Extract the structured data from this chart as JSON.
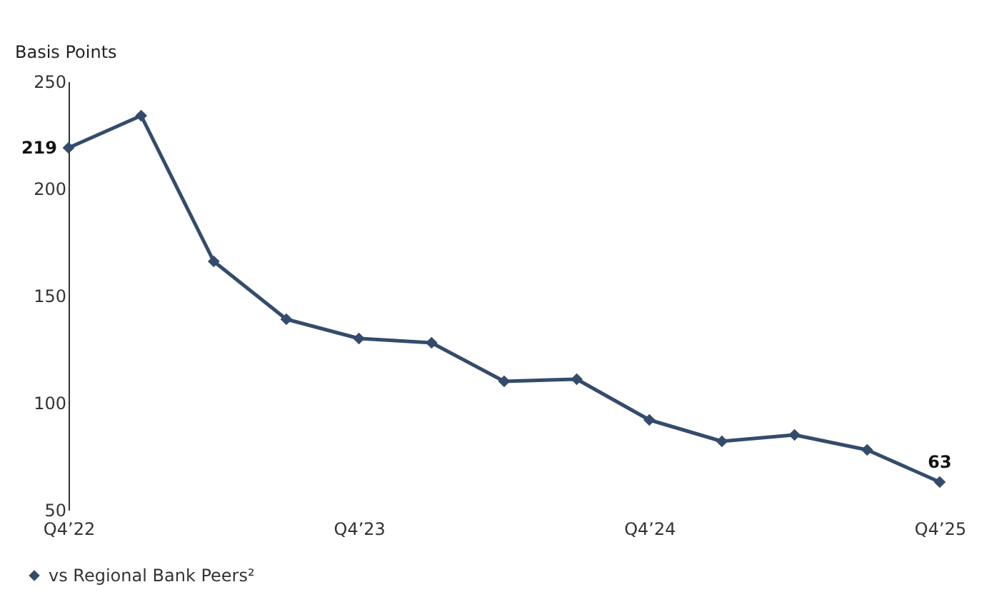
{
  "chart_data": {
    "type": "line",
    "ylabel": "Basis Points",
    "categories": [
      "Q4’22",
      null,
      null,
      null,
      "Q4’23",
      null,
      null,
      null,
      "Q4’24",
      null,
      null,
      null,
      "Q4’25"
    ],
    "series": [
      {
        "name": "vs Regional Bank Peers²",
        "color": "#344c6c",
        "values": [
          219,
          234,
          166,
          139,
          130,
          128,
          110,
          111,
          92,
          82,
          85,
          78,
          63
        ],
        "value_labels": [
          "219",
          null,
          null,
          null,
          null,
          null,
          null,
          null,
          null,
          null,
          null,
          null,
          "63"
        ]
      }
    ],
    "ylim": [
      50,
      250
    ],
    "yticks": [
      50,
      100,
      150,
      200,
      250
    ],
    "grid": false,
    "legend": "bottom left",
    "marker": "diamond",
    "line_style": "solid"
  }
}
